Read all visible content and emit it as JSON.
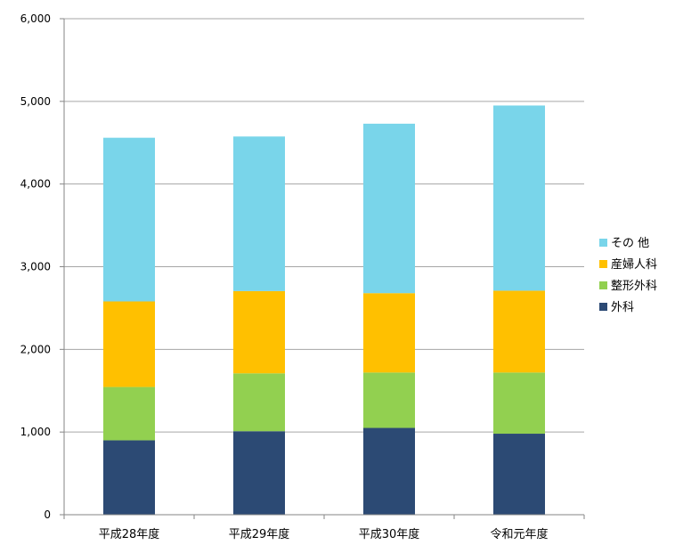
{
  "chart_data": {
    "type": "bar",
    "stacked": true,
    "categories": [
      "平成28年度",
      "平成29年度",
      "平成30年度",
      "令和元年度"
    ],
    "series": [
      {
        "name": "外科",
        "color": "#2c4a74",
        "values": [
          900,
          1010,
          1050,
          980
        ]
      },
      {
        "name": "整形外科",
        "color": "#92d050",
        "values": [
          645,
          700,
          670,
          740
        ]
      },
      {
        "name": "産婦人科",
        "color": "#ffc000",
        "values": [
          1035,
          995,
          960,
          990
        ]
      },
      {
        "name": "その 他",
        "color": "#79d5ea",
        "values": [
          1980,
          1870,
          2050,
          2240
        ]
      }
    ],
    "ylim": [
      0,
      6000
    ],
    "yticks": [
      0,
      1000,
      2000,
      3000,
      4000,
      5000,
      6000
    ],
    "ytick_labels": [
      "0",
      "1,000",
      "2,000",
      "3,000",
      "4,000",
      "5,000",
      "6,000"
    ],
    "grid": true,
    "legend_position": "right",
    "legend_order": [
      "その 他",
      "産婦人科",
      "整形外科",
      "外科"
    ],
    "title": "",
    "xlabel": "",
    "ylabel": ""
  }
}
